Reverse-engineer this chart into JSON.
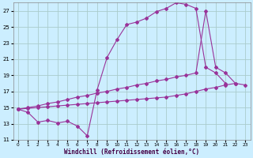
{
  "xlabel": "Windchill (Refroidissement éolien,°C)",
  "bg_color": "#cceeff",
  "grid_color": "#aacccc",
  "line_color": "#993399",
  "xlim": [
    -0.5,
    23.5
  ],
  "ylim": [
    11,
    28
  ],
  "xticks": [
    0,
    1,
    2,
    3,
    4,
    5,
    6,
    7,
    8,
    9,
    10,
    11,
    12,
    13,
    14,
    15,
    16,
    17,
    18,
    19,
    20,
    21,
    22,
    23
  ],
  "yticks": [
    11,
    13,
    15,
    17,
    19,
    21,
    23,
    25,
    27
  ],
  "s1x": [
    0,
    1,
    2,
    3,
    4,
    5,
    6,
    7,
    8,
    9,
    10,
    11,
    12,
    13,
    14,
    15,
    16,
    17,
    18,
    19,
    20,
    21
  ],
  "s1y": [
    14.8,
    14.4,
    13.2,
    13.4,
    13.1,
    13.3,
    12.7,
    11.5,
    17.2,
    21.2,
    23.4,
    25.3,
    25.6,
    26.1,
    26.9,
    27.3,
    28.0,
    27.8,
    27.3,
    20.0,
    19.3,
    18.0
  ],
  "s2x": [
    0,
    1,
    2,
    3,
    4,
    5,
    6,
    7,
    8,
    9,
    10,
    11,
    12,
    13,
    14,
    15,
    16,
    17,
    18,
    19,
    20,
    21,
    22
  ],
  "s2y": [
    14.8,
    15.0,
    15.2,
    15.5,
    15.7,
    16.0,
    16.3,
    16.5,
    16.8,
    17.0,
    17.3,
    17.5,
    17.8,
    18.0,
    18.3,
    18.5,
    18.8,
    19.0,
    19.3,
    27.0,
    20.0,
    19.3,
    18.0
  ],
  "s3x": [
    0,
    1,
    2,
    3,
    4,
    5,
    6,
    7,
    8,
    9,
    10,
    11,
    12,
    13,
    14,
    15,
    16,
    17,
    18,
    19,
    20,
    21,
    22,
    23
  ],
  "s3y": [
    14.8,
    14.9,
    15.0,
    15.1,
    15.2,
    15.3,
    15.4,
    15.5,
    15.6,
    15.7,
    15.8,
    15.9,
    16.0,
    16.1,
    16.2,
    16.3,
    16.5,
    16.7,
    17.0,
    17.3,
    17.5,
    17.8,
    18.0,
    17.8
  ]
}
